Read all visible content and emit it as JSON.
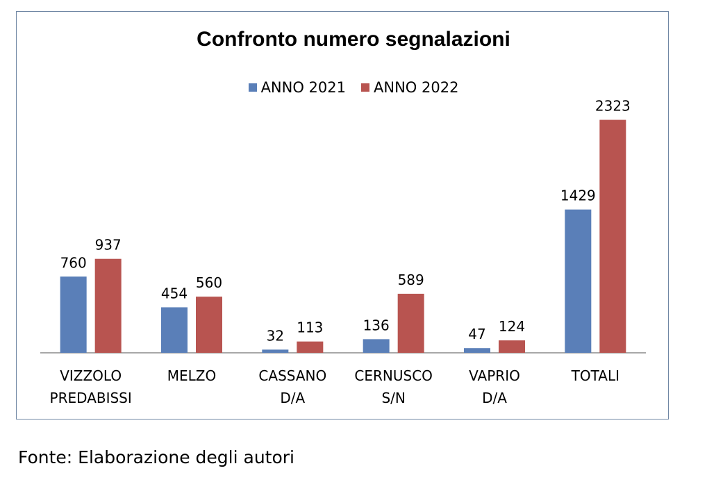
{
  "colors": {
    "series_2021": "#5a7fb8",
    "series_2022": "#b85450",
    "border": "#6f86a3"
  },
  "chart_data": {
    "type": "bar",
    "title": "Confronto numero segnalazioni",
    "categories": [
      [
        "VIZZOLO",
        "PREDABISSI"
      ],
      [
        "MELZO"
      ],
      [
        "CASSANO",
        "D/A"
      ],
      [
        "CERNUSCO",
        "S/N"
      ],
      [
        "VAPRIO",
        "D/A"
      ],
      [
        "TOTALI"
      ]
    ],
    "series": [
      {
        "name": "ANNO 2021",
        "values": [
          760,
          454,
          32,
          136,
          47,
          1429
        ]
      },
      {
        "name": "ANNO 2022",
        "values": [
          937,
          560,
          113,
          589,
          124,
          2323
        ]
      }
    ],
    "legend_position": "top",
    "grid": false,
    "ylim": [
      0,
      2500
    ]
  },
  "source": "Fonte: Elaborazione degli autori"
}
